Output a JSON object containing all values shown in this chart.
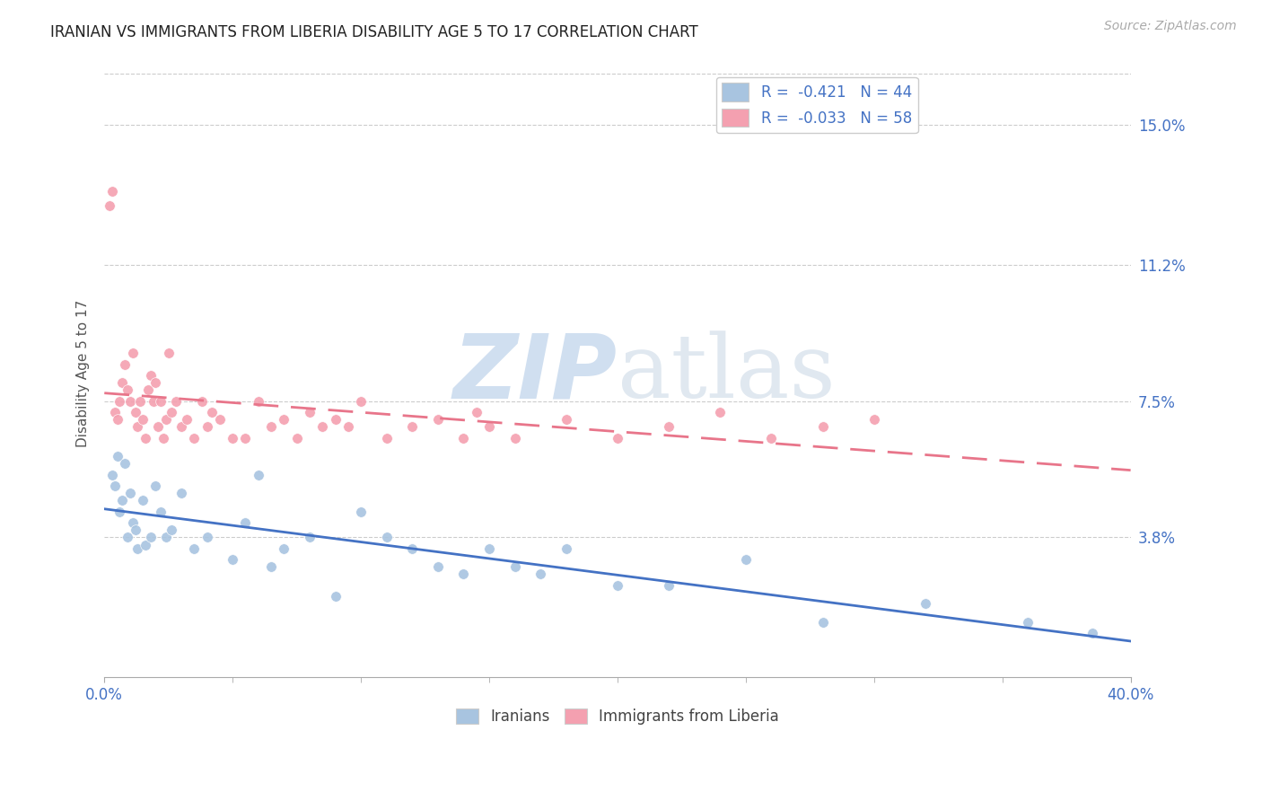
{
  "title": "IRANIAN VS IMMIGRANTS FROM LIBERIA DISABILITY AGE 5 TO 17 CORRELATION CHART",
  "source": "Source: ZipAtlas.com",
  "ylabel": "Disability Age 5 to 17",
  "ytick_labels": [
    "3.8%",
    "7.5%",
    "11.2%",
    "15.0%"
  ],
  "ytick_values": [
    3.8,
    7.5,
    11.2,
    15.0
  ],
  "xmin": 0.0,
  "xmax": 40.0,
  "ymin": 0.0,
  "ymax": 16.5,
  "watermark_zip": "ZIP",
  "watermark_atlas": "atlas",
  "legend_r1": "R =  -0.421",
  "legend_n1": "N = 44",
  "legend_r2": "R =  -0.033",
  "legend_n2": "N = 58",
  "color_iranians": "#a8c4e0",
  "color_liberia": "#f4a0b0",
  "color_iranians_line": "#4472c4",
  "color_liberia_line": "#e8758a",
  "color_axis_labels": "#4472c4",
  "iranians_x": [
    0.3,
    0.4,
    0.5,
    0.6,
    0.7,
    0.8,
    0.9,
    1.0,
    1.1,
    1.2,
    1.3,
    1.5,
    1.6,
    1.8,
    2.0,
    2.2,
    2.4,
    2.6,
    3.0,
    3.5,
    4.0,
    5.0,
    5.5,
    6.0,
    6.5,
    7.0,
    8.0,
    9.0,
    10.0,
    11.0,
    12.0,
    13.0,
    14.0,
    15.0,
    16.0,
    17.0,
    18.0,
    20.0,
    22.0,
    25.0,
    28.0,
    32.0,
    36.0,
    38.5
  ],
  "iranians_y": [
    5.5,
    5.2,
    6.0,
    4.5,
    4.8,
    5.8,
    3.8,
    5.0,
    4.2,
    4.0,
    3.5,
    4.8,
    3.6,
    3.8,
    5.2,
    4.5,
    3.8,
    4.0,
    5.0,
    3.5,
    3.8,
    3.2,
    4.2,
    5.5,
    3.0,
    3.5,
    3.8,
    2.2,
    4.5,
    3.8,
    3.5,
    3.0,
    2.8,
    3.5,
    3.0,
    2.8,
    3.5,
    2.5,
    2.5,
    3.2,
    1.5,
    2.0,
    1.5,
    1.2
  ],
  "liberia_x": [
    0.2,
    0.3,
    0.4,
    0.5,
    0.6,
    0.7,
    0.8,
    0.9,
    1.0,
    1.1,
    1.2,
    1.3,
    1.4,
    1.5,
    1.6,
    1.7,
    1.8,
    1.9,
    2.0,
    2.1,
    2.2,
    2.3,
    2.4,
    2.5,
    2.6,
    2.8,
    3.0,
    3.2,
    3.5,
    3.8,
    4.0,
    4.2,
    4.5,
    5.0,
    5.5,
    6.0,
    6.5,
    7.0,
    7.5,
    8.0,
    8.5,
    9.0,
    9.5,
    10.0,
    11.0,
    12.0,
    13.0,
    14.0,
    14.5,
    15.0,
    16.0,
    18.0,
    20.0,
    22.0,
    24.0,
    26.0,
    28.0,
    30.0
  ],
  "liberia_y": [
    12.8,
    13.2,
    7.2,
    7.0,
    7.5,
    8.0,
    8.5,
    7.8,
    7.5,
    8.8,
    7.2,
    6.8,
    7.5,
    7.0,
    6.5,
    7.8,
    8.2,
    7.5,
    8.0,
    6.8,
    7.5,
    6.5,
    7.0,
    8.8,
    7.2,
    7.5,
    6.8,
    7.0,
    6.5,
    7.5,
    6.8,
    7.2,
    7.0,
    6.5,
    6.5,
    7.5,
    6.8,
    7.0,
    6.5,
    7.2,
    6.8,
    7.0,
    6.8,
    7.5,
    6.5,
    6.8,
    7.0,
    6.5,
    7.2,
    6.8,
    6.5,
    7.0,
    6.5,
    6.8,
    7.2,
    6.5,
    6.8,
    7.0
  ]
}
